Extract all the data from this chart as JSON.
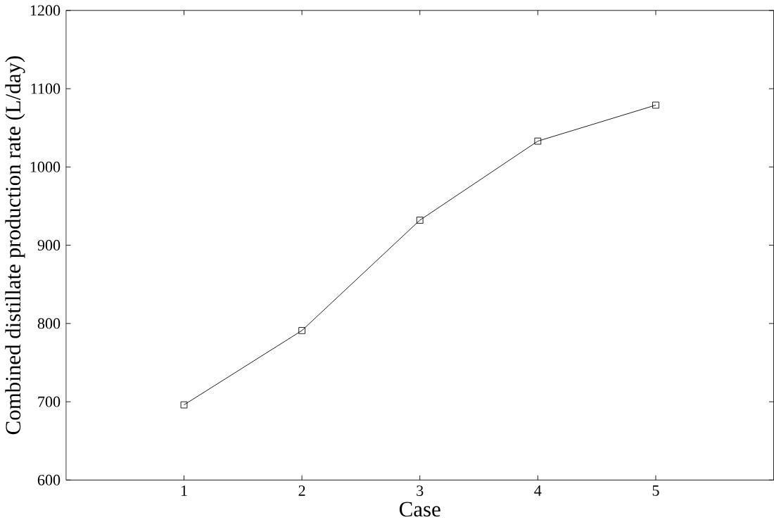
{
  "chart_data": {
    "type": "line",
    "xlabel": "Case",
    "ylabel": "Combined distillate production rate (L/day)",
    "x": [
      1,
      2,
      3,
      4,
      5
    ],
    "series": [
      {
        "color": "#000000",
        "values": [
          696,
          791,
          932,
          1033,
          1079
        ]
      }
    ],
    "xlim": [
      0,
      6
    ],
    "xticks": [
      1,
      2,
      3,
      4,
      5
    ],
    "ylim": [
      600,
      1200
    ],
    "yticks": [
      600,
      700,
      800,
      900,
      1000,
      1100,
      1200
    ],
    "grid": false,
    "marker": "square",
    "line_style": "solid"
  }
}
